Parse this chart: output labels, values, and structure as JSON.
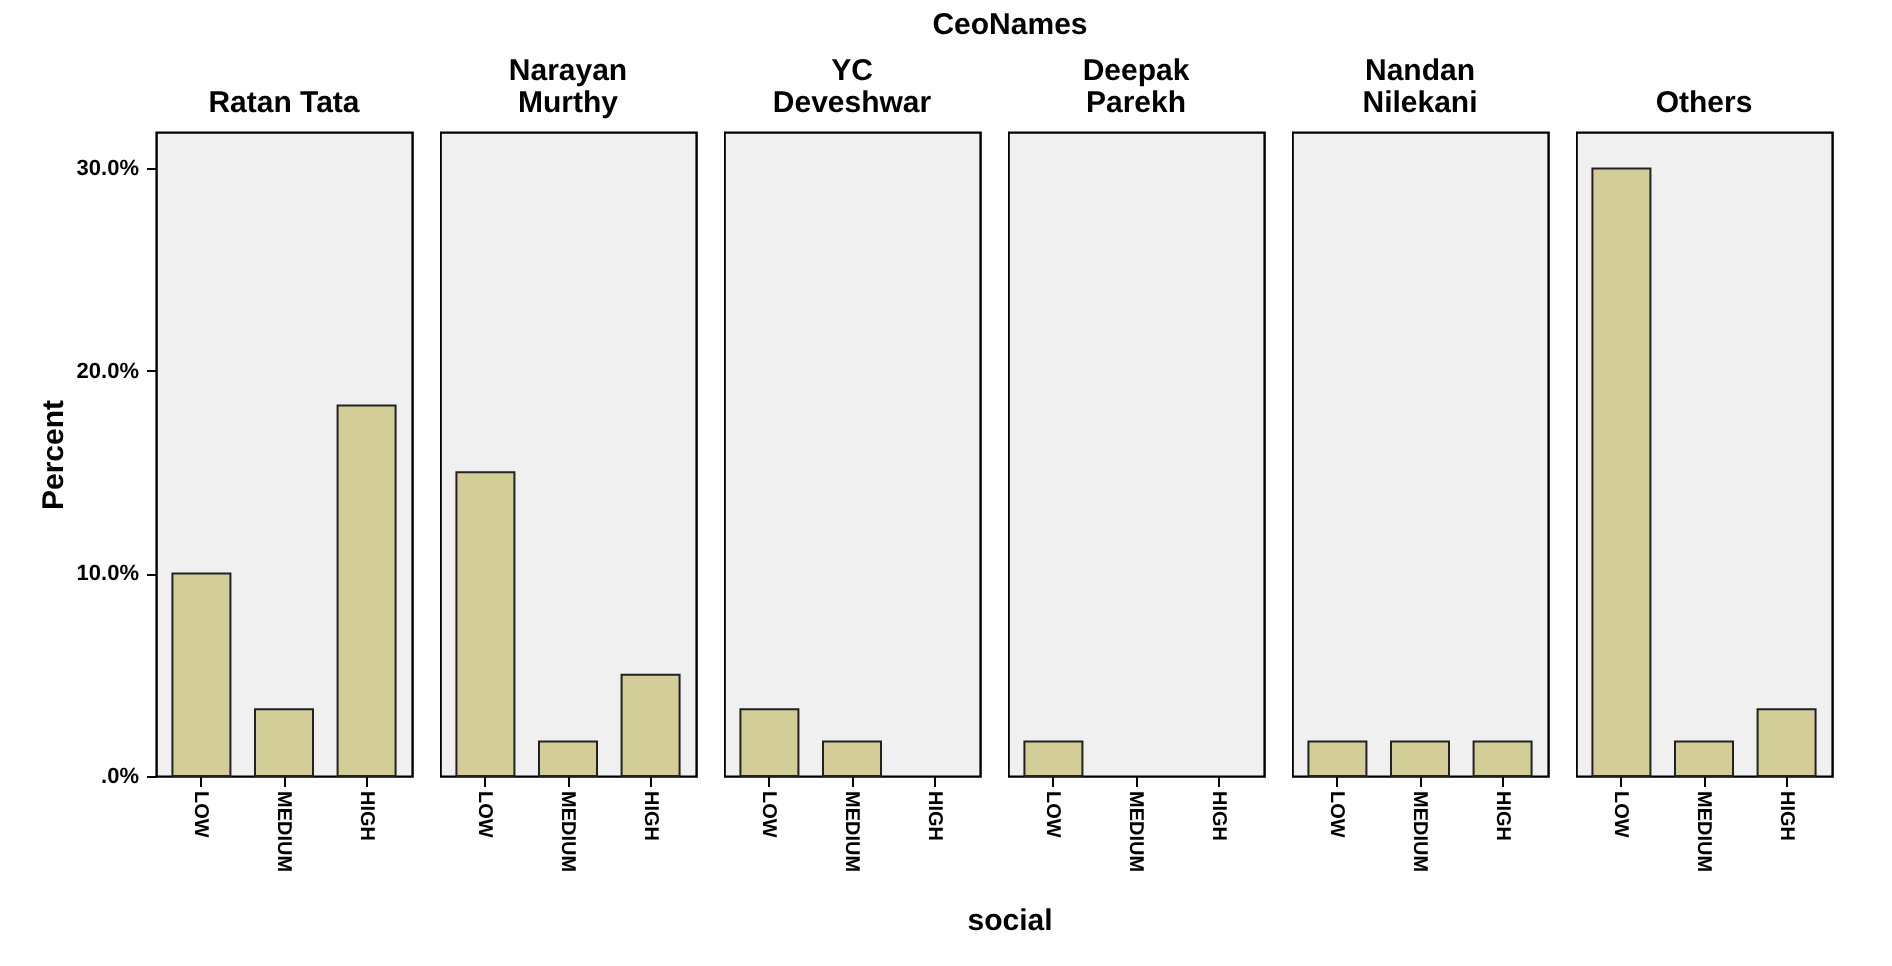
{
  "chart_data": [
    {
      "type": "bar",
      "title": "Ratan Tata",
      "annotations": [
        "CeoNames",
        "social"
      ],
      "ylabel": "Percent",
      "categories": [
        "LOW",
        "MEDIUM",
        "HIGH"
      ],
      "values": [
        10.0,
        3.3,
        18.3
      ],
      "color": "#d3ce97",
      "ylim": [
        0,
        31.8
      ],
      "yticks": [
        {
          "value": 0,
          "label": ".0%"
        },
        {
          "value": 10,
          "label": "10.0%"
        },
        {
          "value": 20,
          "label": "20.0%"
        },
        {
          "value": 30,
          "label": "30.0%"
        }
      ]
    },
    {
      "type": "bar",
      "title": "Narayan Murthy",
      "categories": [
        "LOW",
        "MEDIUM",
        "HIGH"
      ],
      "values": [
        15.0,
        1.7,
        5.0
      ],
      "color": "#d3ce97",
      "ylim": [
        0,
        31.8
      ],
      "tick_labels": "x"
    },
    {
      "type": "bar",
      "title": "YC Deveshwar",
      "categories": [
        "LOW",
        "MEDIUM",
        "HIGH"
      ],
      "values": [
        3.3,
        1.7,
        0
      ],
      "color": "#d3ce97",
      "ylim": [
        0,
        31.8
      ],
      "tick_labels": "x"
    },
    {
      "type": "bar",
      "title": "Deepak Parekh",
      "categories": [
        "LOW",
        "MEDIUM",
        "HIGH"
      ],
      "values": [
        1.7,
        0,
        0
      ],
      "color": "#d3ce97",
      "ylim": [
        0,
        31.8
      ],
      "tick_labels": "x"
    },
    {
      "type": "bar",
      "title": "Nandan Nilekani",
      "categories": [
        "LOW",
        "MEDIUM",
        "HIGH"
      ],
      "values": [
        1.7,
        1.7,
        1.7
      ],
      "color": "#d3ce97",
      "ylim": [
        0,
        31.8
      ],
      "tick_labels": "x"
    },
    {
      "type": "bar",
      "title": "Others",
      "categories": [
        "LOW",
        "MEDIUM",
        "HIGH"
      ],
      "values": [
        30.0,
        1.7,
        3.3
      ],
      "color": "#d3ce97",
      "ylim": [
        0,
        31.8
      ],
      "tick_labels": "x"
    }
  ]
}
